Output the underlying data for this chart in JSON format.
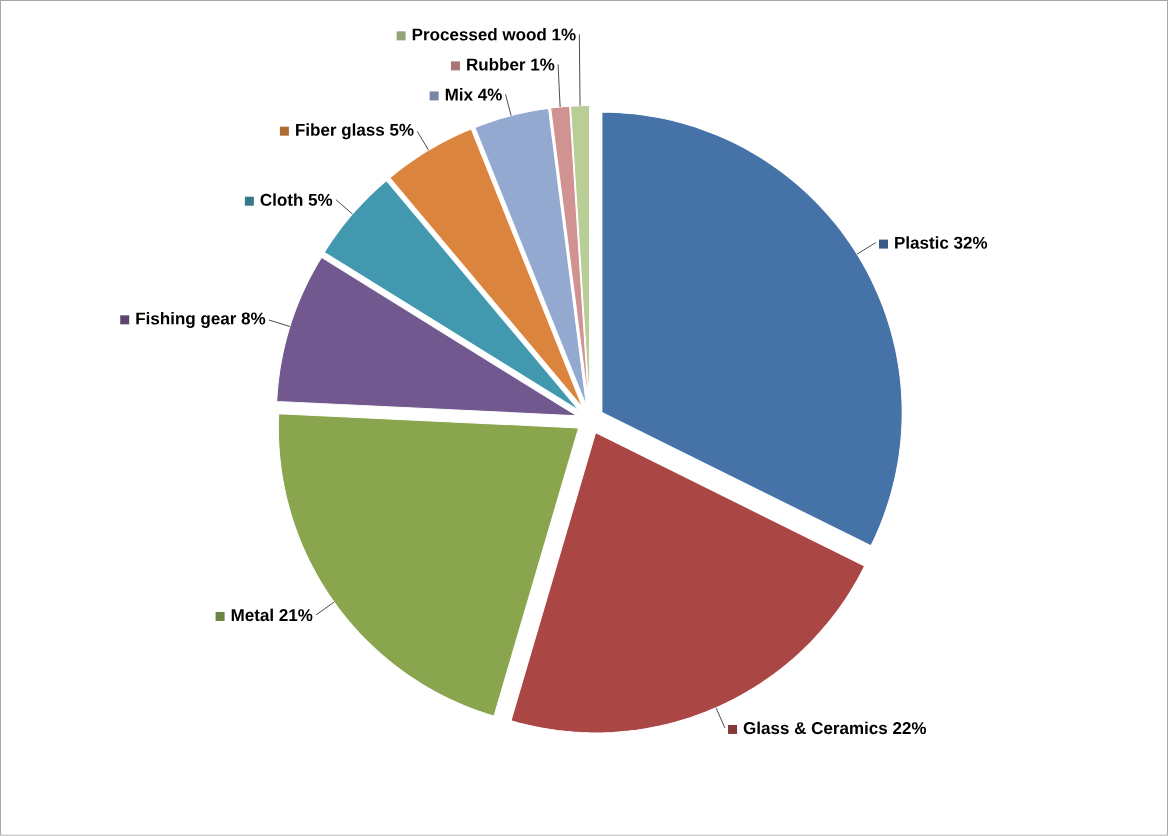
{
  "chart_data": {
    "type": "pie",
    "categories": [
      "Plastic",
      "Glass & Ceramics",
      "Metal",
      "Fishing gear",
      "Cloth",
      "Fiber glass",
      "Mix",
      "Rubber",
      "Processed wood"
    ],
    "values": [
      32,
      22,
      21,
      8,
      5,
      5,
      4,
      1,
      1
    ],
    "value_labels": [
      "32%",
      "22%",
      "21%",
      "8%",
      "5%",
      "5%",
      "4%",
      "1%",
      "1%"
    ],
    "colors": [
      "#4572a7",
      "#aa4643",
      "#89a54e",
      "#71588f",
      "#4198af",
      "#db843d",
      "#93a9cf",
      "#d19392",
      "#b9cd96"
    ]
  }
}
